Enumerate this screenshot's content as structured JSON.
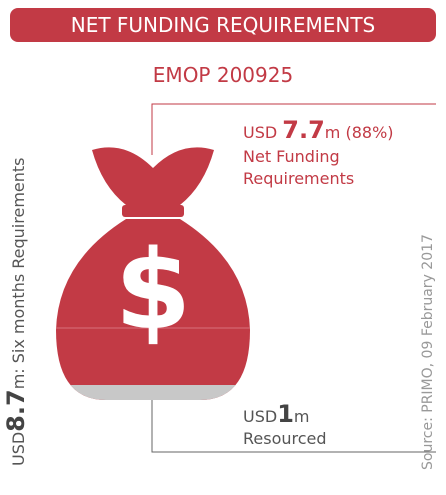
{
  "header": {
    "title": "NET FUNDING REQUIREMENTS",
    "subtitle": "EMOP 200925"
  },
  "total": {
    "prefix": "USD",
    "amount": "8.7",
    "suffix": "m: Six months Requirements"
  },
  "net": {
    "prefix": "USD ",
    "amount": "7.7",
    "suffix": "m (88%)",
    "line1": "Net Funding",
    "line2": "Requirements"
  },
  "resourced": {
    "prefix": "USD",
    "amount": "1",
    "suffix": "m",
    "label": "Resourced"
  },
  "symbol": "$",
  "source": "Source: PRIMO, 09 February 2017"
}
